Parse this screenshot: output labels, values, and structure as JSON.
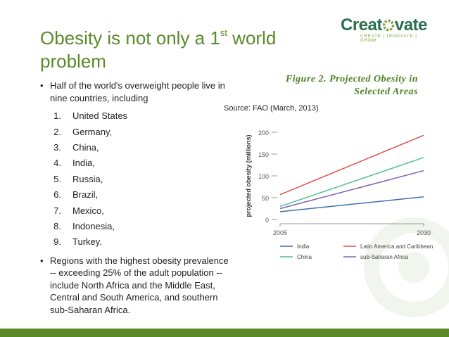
{
  "slide": {
    "title_part1": "Obesity is not only a 1",
    "title_sup": "st",
    "title_part2": " world problem",
    "logo_text_before": "Creat",
    "logo_text_after": "vate",
    "logo_tagline": "CREATE | INNOVATE | GROW",
    "bullet1": "Half of the world's overweight people live in nine countries, including",
    "countries": [
      {
        "num": "1.",
        "name": "United States"
      },
      {
        "num": "2.",
        "name": "Germany,"
      },
      {
        "num": "3.",
        "name": "China,"
      },
      {
        "num": "4.",
        "name": "India,"
      },
      {
        "num": "5.",
        "name": "Russia,"
      },
      {
        "num": "6.",
        "name": "Brazil,"
      },
      {
        "num": "7.",
        "name": "Mexico,"
      },
      {
        "num": "8.",
        "name": "Indonesia,"
      },
      {
        "num": "9.",
        "name": "Turkey."
      }
    ],
    "bullet2": "Regions with the highest obesity prevalence -- exceeding 25% of the adult population -- include North Africa and the Middle East, Central and South America, and southern sub-Saharan Africa.",
    "bullet_marker": "•",
    "figure_caption_line1": "Figure 2. Projected Obesity in",
    "figure_caption_line2": "Selected Areas",
    "source": "Source: FAO (March, 2013)"
  },
  "colors": {
    "accent_green": "#5a8a2a",
    "logo_green": "#2a6e50"
  },
  "chart_data": {
    "type": "line",
    "ylabel": "projected obesity (millions)",
    "x": [
      2005,
      2030
    ],
    "x_ticks": [
      "2005",
      "2030"
    ],
    "ylim": [
      0,
      200
    ],
    "y_ticks": [
      0,
      50,
      100,
      150,
      200
    ],
    "series": [
      {
        "name": "India",
        "color": "#3d6fb0",
        "values": [
          18,
          52
        ]
      },
      {
        "name": "China",
        "color": "#4cc08a",
        "values": [
          30,
          142
        ]
      },
      {
        "name": "Latin America and Caribbean",
        "color": "#e0504a",
        "values": [
          57,
          193
        ]
      },
      {
        "name": "sub-Saharan Africa",
        "color": "#8060b0",
        "values": [
          25,
          112
        ]
      }
    ],
    "legend_position": "bottom"
  }
}
